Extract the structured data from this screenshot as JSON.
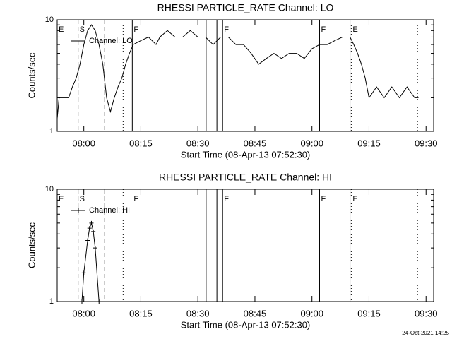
{
  "chart_data": [
    {
      "type": "line",
      "title": "RHESSI PARTICLE_RATE Channel: LO",
      "xlabel": "Start Time (08-Apr-13 07:52:30)",
      "ylabel": "Counts/sec",
      "xlim": [
        "07:53:00",
        "09:32:00"
      ],
      "xticks": [
        "08:00",
        "08:15",
        "08:30",
        "08:45",
        "09:00",
        "09:15",
        "09:30"
      ],
      "ylim": [
        1,
        10
      ],
      "yticks": [
        1,
        10
      ],
      "log_y": true,
      "legend": "upper left",
      "x": [
        "07:53:00",
        "07:53:30",
        "07:56:00",
        "07:57:00",
        "07:58:00",
        "07:59:00",
        "08:00:00",
        "08:01:00",
        "08:02:00",
        "08:03:00",
        "08:04:00",
        "08:05:00",
        "08:06:00",
        "08:07:00",
        "08:08:00",
        "08:09:00",
        "08:10:00",
        "08:11:00",
        "08:12:00",
        "08:13:00",
        "08:15:00",
        "08:17:00",
        "08:19:00",
        "08:20:00",
        "08:22:00",
        "08:24:00",
        "08:26:00",
        "08:28:00",
        "08:30:00",
        "08:32:00",
        "08:34:00",
        "08:36:00",
        "08:38:00",
        "08:40:00",
        "08:42:00",
        "08:44:00",
        "08:46:00",
        "08:48:00",
        "08:50:00",
        "08:52:00",
        "08:54:00",
        "08:56:00",
        "08:58:00",
        "09:00:00",
        "09:02:00",
        "09:04:00",
        "09:06:00",
        "09:08:00",
        "09:10:00",
        "09:11:00",
        "09:12:00",
        "09:13:00",
        "09:14:00",
        "09:15:00",
        "09:17:00",
        "09:19:00",
        "09:21:00",
        "09:23:00",
        "09:25:00",
        "09:27:00",
        "09:28:00"
      ],
      "series": [
        {
          "name": "Channel: LO",
          "color": "#000000",
          "marker": "none",
          "values": [
            1.3,
            2,
            2,
            2.5,
            3,
            4,
            6,
            8,
            9,
            8,
            6,
            4,
            2,
            1.5,
            2,
            2.5,
            3,
            4,
            5,
            6,
            6.5,
            7,
            6,
            7,
            8,
            7,
            7,
            8,
            7,
            7,
            6,
            7,
            7,
            6,
            6,
            5,
            4,
            4.5,
            5,
            4.5,
            5,
            5,
            4.5,
            5.5,
            6,
            6,
            6.5,
            7,
            7,
            6,
            5,
            4,
            3,
            2,
            2.5,
            2,
            2.5,
            2,
            2.5,
            2,
            2
          ]
        }
      ],
      "vlines": [
        {
          "x": "07:58:30",
          "style": "dashed"
        },
        {
          "x": "08:05:30",
          "style": "dashed"
        },
        {
          "x": "08:10:20",
          "style": "dotted"
        },
        {
          "x": "08:12:45",
          "style": "solid"
        },
        {
          "x": "08:32:10",
          "style": "solid"
        },
        {
          "x": "08:35:00",
          "style": "solid"
        },
        {
          "x": "08:36:30",
          "style": "solid"
        },
        {
          "x": "09:02:00",
          "style": "solid"
        },
        {
          "x": "09:10:00",
          "style": "solid"
        },
        {
          "x": "09:10:20",
          "style": "dotted"
        },
        {
          "x": "09:27:45",
          "style": "dotted"
        }
      ],
      "annotations": [
        {
          "text": "E",
          "x": "07:53:00"
        },
        {
          "text": "S",
          "x": "07:58:30"
        },
        {
          "text": "F",
          "x": "08:12:45"
        },
        {
          "text": "F",
          "x": "08:36:30"
        },
        {
          "text": "F",
          "x": "09:02:00"
        },
        {
          "text": "E",
          "x": "09:10:20"
        }
      ]
    },
    {
      "type": "line",
      "title": "RHESSI PARTICLE_RATE Channel: HI",
      "xlabel": "Start Time (08-Apr-13 07:52:30)",
      "ylabel": "Counts/sec",
      "xlim": [
        "07:53:00",
        "09:32:00"
      ],
      "xticks": [
        "08:00",
        "08:15",
        "08:30",
        "08:45",
        "09:00",
        "09:15",
        "09:30"
      ],
      "ylim": [
        1,
        10
      ],
      "yticks": [
        1,
        10
      ],
      "log_y": true,
      "legend": "upper left",
      "x": [
        "07:59:30",
        "08:00:00",
        "08:01:00",
        "08:01:30",
        "08:02:00",
        "08:02:30",
        "08:03:00",
        "08:04:00"
      ],
      "series": [
        {
          "name": "Channel: HI",
          "color": "#000000",
          "marker": "plus",
          "values": [
            1,
            1.8,
            3.5,
            4.5,
            5,
            4.2,
            3,
            1
          ]
        }
      ],
      "vlines": [
        {
          "x": "07:58:30",
          "style": "dashed"
        },
        {
          "x": "08:05:30",
          "style": "dashed"
        },
        {
          "x": "08:10:20",
          "style": "dotted"
        },
        {
          "x": "08:32:10",
          "style": "solid"
        },
        {
          "x": "08:35:00",
          "style": "solid"
        },
        {
          "x": "08:36:30",
          "style": "solid"
        },
        {
          "x": "09:02:00",
          "style": "solid"
        },
        {
          "x": "09:10:00",
          "style": "solid"
        },
        {
          "x": "09:10:20",
          "style": "dotted"
        },
        {
          "x": "09:27:45",
          "style": "dotted"
        }
      ],
      "annotations": [
        {
          "text": "E",
          "x": "07:53:00"
        },
        {
          "text": "S",
          "x": "07:58:30"
        },
        {
          "text": "F",
          "x": "08:12:45"
        },
        {
          "text": "F",
          "x": "08:36:30"
        },
        {
          "text": "F",
          "x": "09:02:00"
        },
        {
          "text": "E",
          "x": "09:10:20"
        }
      ]
    }
  ],
  "timestamp": "24-Oct-2021 14:25"
}
